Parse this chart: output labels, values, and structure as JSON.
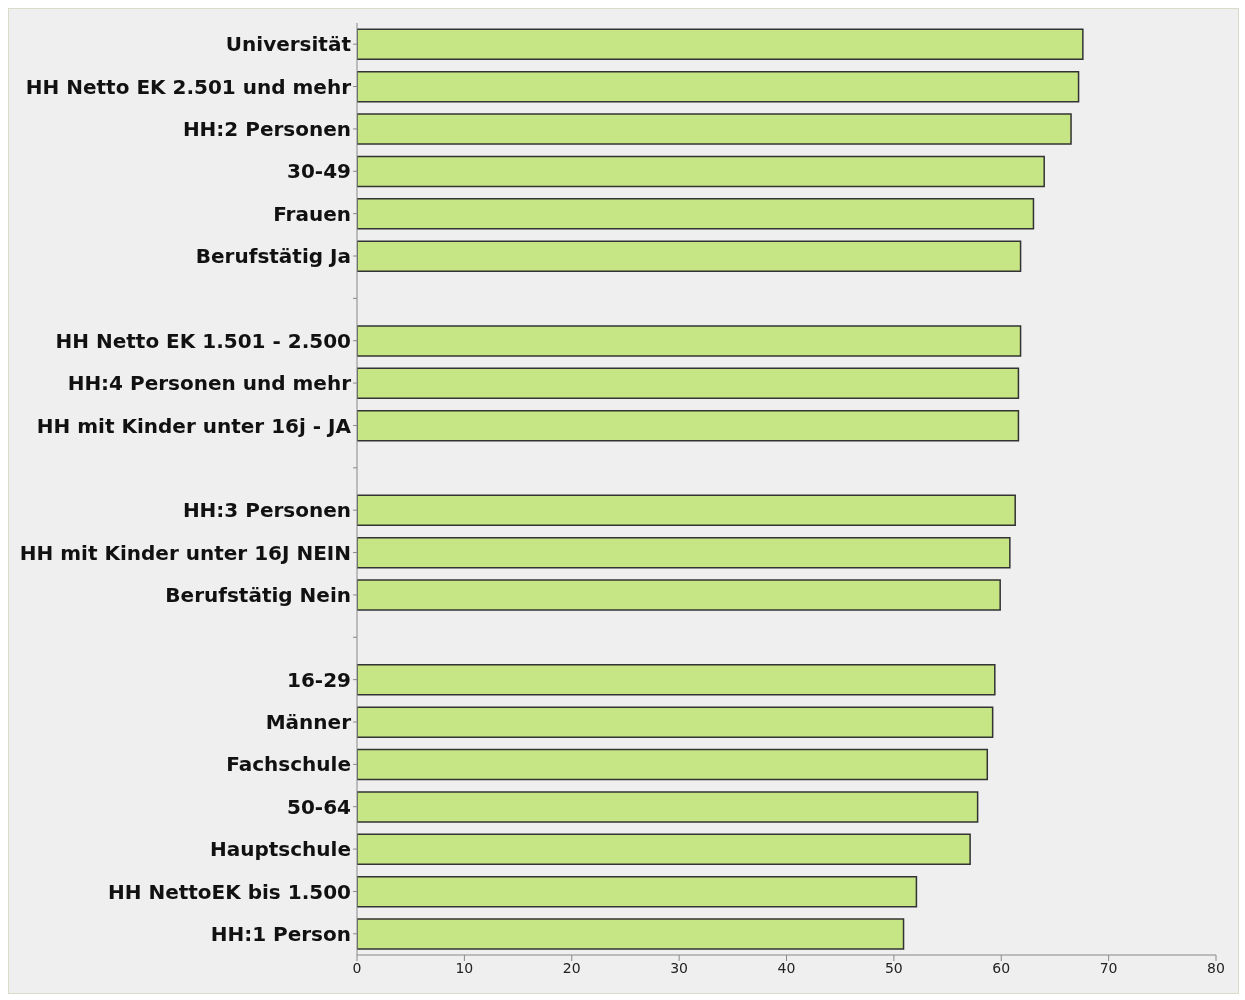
{
  "chart_data": {
    "type": "bar",
    "orientation": "horizontal",
    "categories": [
      "Universität",
      "HH Netto EK 2.501 und mehr",
      "HH:2 Personen",
      "30-49",
      "Frauen",
      "Berufstätig Ja",
      null,
      "HH Netto EK 1.501 - 2.500",
      "HH:4 Personen und mehr",
      "HH mit Kinder unter 16j - JA",
      null,
      "HH:3 Personen",
      "HH mit Kinder unter 16J NEIN",
      "Berufstätig Nein",
      null,
      "16-29",
      "Männer",
      "Fachschule",
      "50-64",
      "Hauptschule",
      "HH NettoEK bis 1.500",
      "HH:1 Person"
    ],
    "values": [
      67.6,
      67.2,
      66.5,
      64.0,
      63.0,
      61.8,
      null,
      61.8,
      61.6,
      61.6,
      null,
      61.3,
      60.8,
      59.9,
      null,
      59.4,
      59.2,
      58.7,
      57.8,
      57.1,
      52.1,
      50.9
    ],
    "color": "#c6e584",
    "xlim": [
      0,
      80
    ],
    "xticks": [
      0,
      10,
      20,
      30,
      40,
      50,
      60,
      70,
      80
    ]
  }
}
